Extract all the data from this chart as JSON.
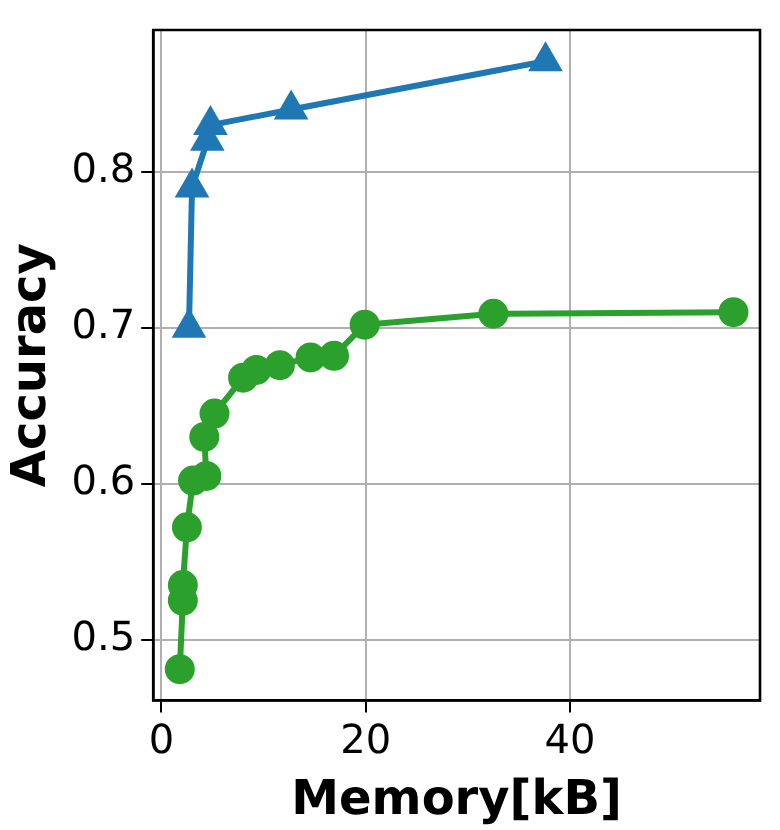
{
  "chart_data": {
    "type": "line",
    "xlabel": "Memory[kB]",
    "ylabel": "Accuracy",
    "xlim": [
      -0.8,
      58.6
    ],
    "xticks": [
      0,
      20,
      40
    ],
    "ylim": [
      0.461,
      0.891
    ],
    "yticks": [
      0.5,
      0.6,
      0.7,
      0.8
    ],
    "grid": true,
    "legend": false,
    "series": [
      {
        "color": "#1f77b4",
        "marker": "triangle",
        "x": [
          2.7,
          3.0,
          4.5,
          4.8,
          12.7,
          37.6
        ],
        "values": [
          0.7,
          0.79,
          0.82,
          0.83,
          0.84,
          0.871
        ]
      },
      {
        "color": "#2ca02c",
        "marker": "circle",
        "x": [
          1.8,
          2.1,
          2.1,
          2.5,
          3.1,
          4.4,
          4.2,
          5.2,
          8.0,
          9.3,
          11.6,
          14.6,
          16.9,
          19.9,
          32.5,
          56.0
        ],
        "values": [
          0.481,
          0.525,
          0.535,
          0.572,
          0.602,
          0.605,
          0.63,
          0.645,
          0.668,
          0.673,
          0.676,
          0.681,
          0.682,
          0.702,
          0.709,
          0.71
        ]
      }
    ]
  }
}
